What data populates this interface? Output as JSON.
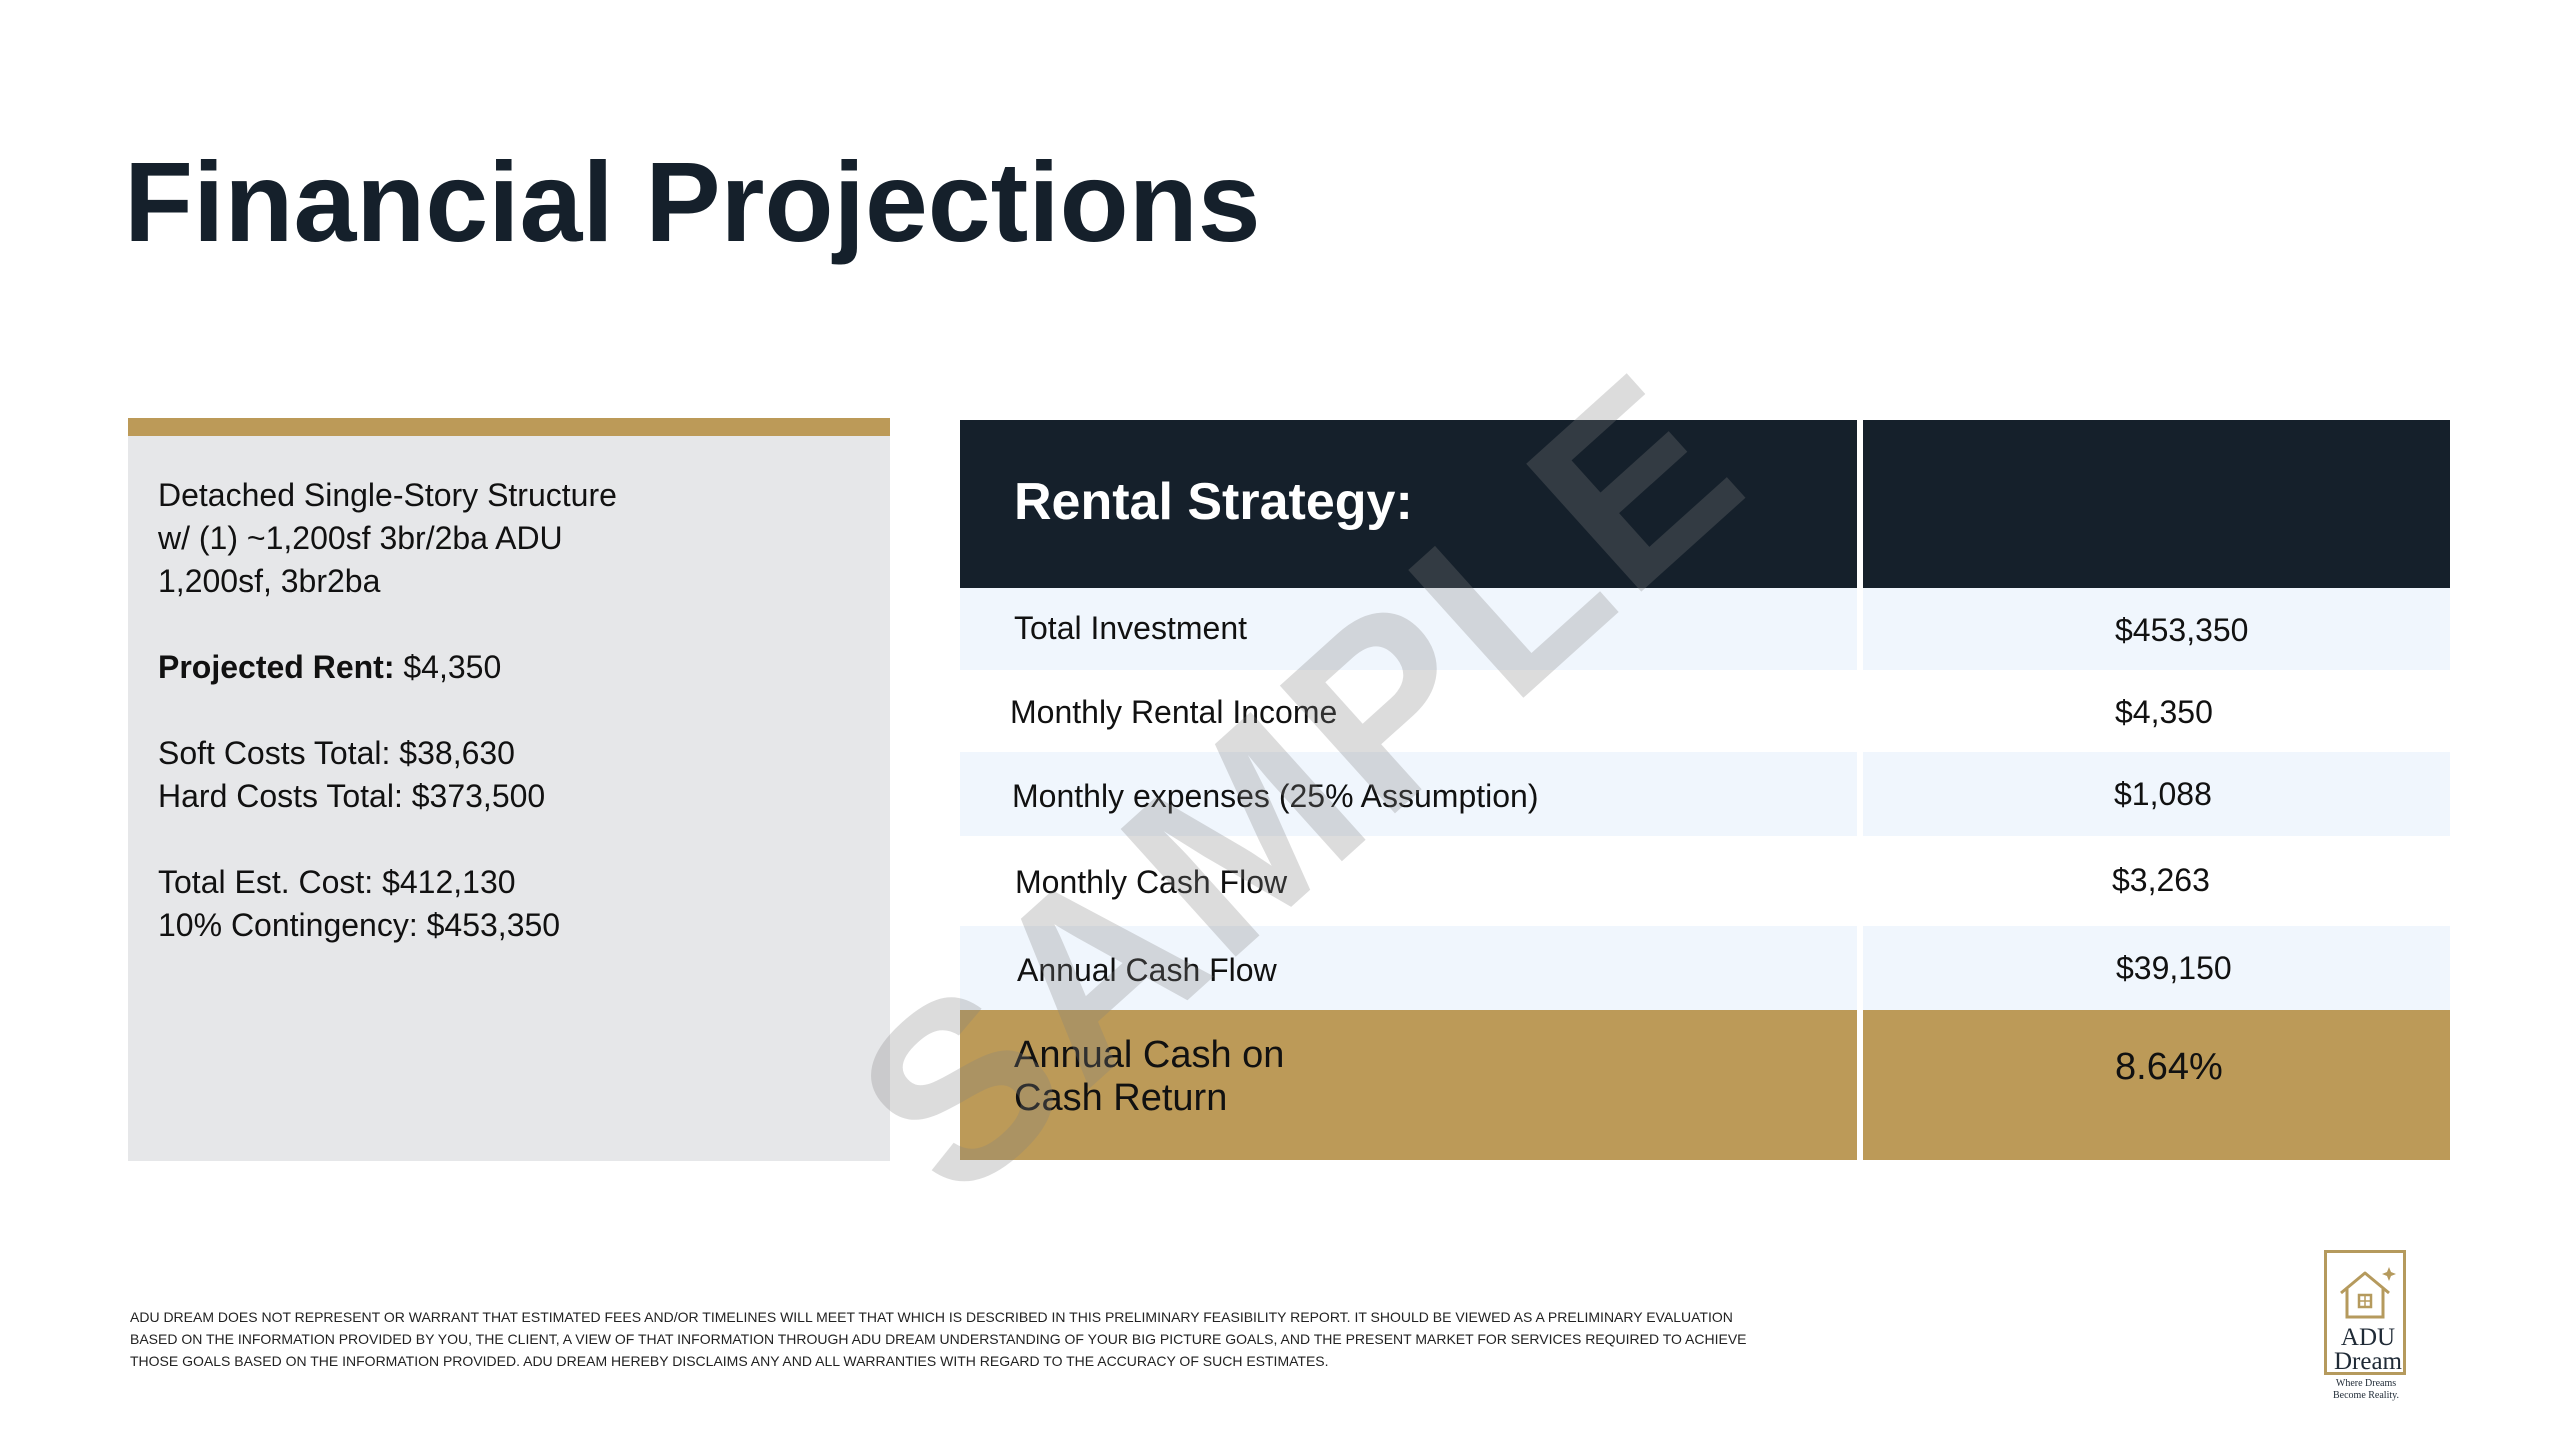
{
  "title": "Financial Projections",
  "colors": {
    "accent_gold": "#bc9a58",
    "navy": "#15202b",
    "row_light": "#f0f6fd",
    "row_white": "#ffffff",
    "card_gray": "#e6e7e9"
  },
  "summary": {
    "lines": [
      "Detached Single-Story Structure",
      "w/ (1) ~1,200sf 3br/2ba ADU",
      "1,200sf, 3br2ba"
    ],
    "projected_rent_label": "Projected Rent:",
    "projected_rent_value": " $4,350",
    "soft_costs": "Soft Costs Total: $38,630",
    "hard_costs": "Hard Costs Total: $373,500",
    "total_est_cost": "Total Est. Cost: $412,130",
    "contingency": "10% Contingency: $453,350"
  },
  "rental_strategy": {
    "header": "Rental Strategy:",
    "rows": [
      {
        "label": "Total Investment",
        "value": "$453,350"
      },
      {
        "label": "Monthly Rental Income",
        "value": "$4,350"
      },
      {
        "label": "Monthly expenses (25% Assumption)",
        "value": "$1,088"
      },
      {
        "label": "Monthly Cash Flow",
        "value": "$3,263"
      },
      {
        "label": "Annual Cash Flow",
        "value": "$39,150"
      }
    ],
    "total": {
      "label_line1": "Annual Cash on",
      "label_line2": "Cash Return",
      "value": "8.64%"
    }
  },
  "watermark": "SAMPLE",
  "disclaimer": "ADU DREAM DOES NOT REPRESENT OR WARRANT THAT ESTIMATED FEES AND/OR TIMELINES WILL MEET THAT WHICH IS DESCRIBED IN THIS PRELIMINARY FEASIBILITY REPORT. IT SHOULD BE VIEWED AS A PRELIMINARY EVALUATION BASED ON THE INFORMATION PROVIDED BY YOU, THE CLIENT, A VIEW OF THAT INFORMATION THROUGH ADU DREAM UNDERSTANDING OF YOUR BIG PICTURE GOALS, AND THE PRESENT MARKET FOR SERVICES REQUIRED TO ACHIEVE THOSE GOALS BASED ON THE INFORMATION PROVIDED. ADU DREAM HEREBY DISCLAIMS ANY AND ALL WARRANTIES WITH REGARD TO THE ACCURACY OF SUCH ESTIMATES.",
  "logo": {
    "icon": "house-logo-icon",
    "word1": "ADU",
    "word2": "Dream",
    "tagline_line1": "Where Dreams",
    "tagline_line2": "Become Reality."
  }
}
